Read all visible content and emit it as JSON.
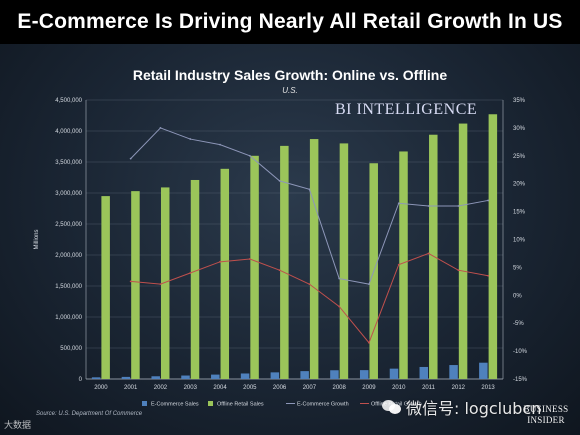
{
  "headline": "E-Commerce Is Driving Nearly All Retail Growth In US",
  "brand_watermark": "BI INTELLIGENCE",
  "wechat_watermark": "微信号: logclubcn",
  "logo_text_1": "BUSINESS",
  "logo_text_2": "INSIDER",
  "source": "Source: U.S. Department Of Commerce",
  "corner_logo": "大数据",
  "colors": {
    "offline_bar": "#9bc55a",
    "ecommerce_bar": "#4f81bd",
    "ecommerce_growth": "#8d96b8",
    "offline_growth": "#c0504d"
  },
  "chart_data": {
    "type": "bar",
    "title": "Retail Industry Sales Growth: Online vs. Offline",
    "subtitle": "U.S.",
    "ylabel": "Millions",
    "ylim": [
      0,
      4500000
    ],
    "y2lim": [
      -15,
      35
    ],
    "y_ticks": [
      "0",
      "500,000",
      "1,000,000",
      "1,500,000",
      "2,000,000",
      "2,500,000",
      "3,000,000",
      "3,500,000",
      "4,000,000",
      "4,500,000"
    ],
    "y_tick_values": [
      0,
      500000,
      1000000,
      1500000,
      2000000,
      2500000,
      3000000,
      3500000,
      4000000,
      4500000
    ],
    "y2_ticks": [
      "-15%",
      "-10%",
      "-5%",
      "0%",
      "5%",
      "10%",
      "15%",
      "20%",
      "25%",
      "30%",
      "35%"
    ],
    "y2_tick_values": [
      -15,
      -10,
      -5,
      0,
      5,
      10,
      15,
      20,
      25,
      30,
      35
    ],
    "categories": [
      "2000",
      "2001",
      "2002",
      "2003",
      "2004",
      "2005",
      "2006",
      "2007",
      "2008",
      "2009",
      "2010",
      "2011",
      "2012",
      "2013"
    ],
    "series": [
      {
        "name": "E-Commerce Sales",
        "kind": "bar",
        "axis": "left",
        "values": [
          27000,
          34000,
          44000,
          56000,
          71000,
          89000,
          107000,
          127000,
          141000,
          143000,
          167000,
          194000,
          225000,
          263000
        ]
      },
      {
        "name": "Offline Retail Sales",
        "kind": "bar",
        "axis": "left",
        "values": [
          2950000,
          3030000,
          3090000,
          3210000,
          3390000,
          3600000,
          3760000,
          3870000,
          3800000,
          3480000,
          3670000,
          3940000,
          4120000,
          4270000
        ]
      },
      {
        "name": "E-Commerce Growth",
        "kind": "line",
        "axis": "right",
        "values": [
          null,
          24.5,
          30,
          28,
          27,
          25,
          20.5,
          19,
          3,
          2,
          16.5,
          16,
          16,
          17
        ]
      },
      {
        "name": "Offline Retail Growth",
        "kind": "line",
        "axis": "right",
        "values": [
          null,
          2.5,
          2,
          4,
          6,
          6.5,
          4.5,
          2,
          -2,
          -8.5,
          5.5,
          7.5,
          4.5,
          3.5
        ]
      }
    ],
    "legend_position": "bottom",
    "grid": true
  }
}
